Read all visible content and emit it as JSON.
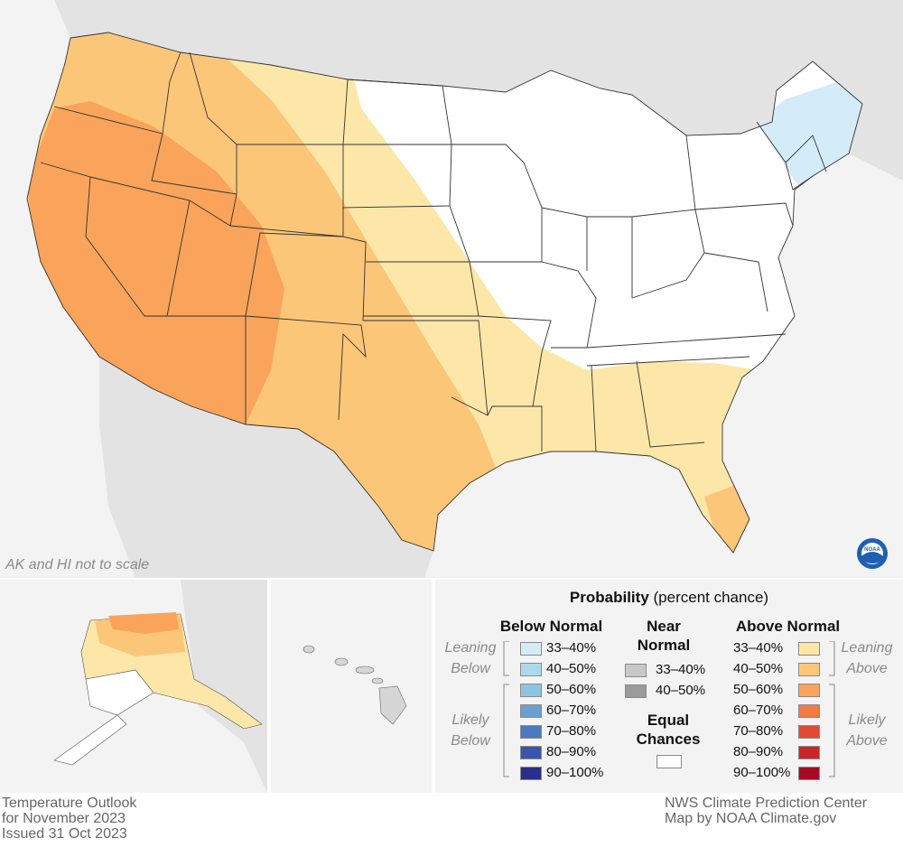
{
  "map": {
    "note": "AK and HI not to scale",
    "logo": "NOAA",
    "colors": {
      "land_bg": "#e8e8e8",
      "water_bg": "#f3f3f3",
      "ec": "#ffffff",
      "above_33_40": "#fde7a8",
      "above_40_50": "#fcc679",
      "above_50_60": "#f9a45a",
      "below_33_40": "#d3ecf7",
      "state_lines": "#333333"
    }
  },
  "legend": {
    "title_bold": "Probability",
    "title_rest": " (percent chance)",
    "below_header": "Below Normal",
    "near_header": "Near Normal",
    "above_header": "Above Normal",
    "leaning": "Leaning",
    "below_word": "Below",
    "likely": "Likely",
    "above_word": "Above",
    "equal_chances": "Equal Chances",
    "below_bins": [
      {
        "label": "33–40%",
        "color": "#d3ecf7"
      },
      {
        "label": "40–50%",
        "color": "#aed9ec"
      },
      {
        "label": "50–60%",
        "color": "#8cc4e2"
      },
      {
        "label": "60–70%",
        "color": "#6a9fd0"
      },
      {
        "label": "70–80%",
        "color": "#4d79c0"
      },
      {
        "label": "80–90%",
        "color": "#3a55ab"
      },
      {
        "label": "90–100%",
        "color": "#2a2e8a"
      }
    ],
    "near_bins": [
      {
        "label": "33–40%",
        "color": "#c8c8c8"
      },
      {
        "label": "40–50%",
        "color": "#9b9b9b"
      }
    ],
    "above_bins": [
      {
        "label": "33–40%",
        "color": "#fde7a8"
      },
      {
        "label": "40–50%",
        "color": "#fcc679"
      },
      {
        "label": "50–60%",
        "color": "#f9a45a"
      },
      {
        "label": "60–70%",
        "color": "#f27a46"
      },
      {
        "label": "70–80%",
        "color": "#e24b33"
      },
      {
        "label": "80–90%",
        "color": "#cc2529"
      },
      {
        "label": "90–100%",
        "color": "#a60a23"
      }
    ]
  },
  "footer": {
    "left_line1": "Temperature Outlook",
    "left_line2": "for November 2023",
    "left_line3": "Issued 31 Oct 2023",
    "right_line1": "NWS Climate Prediction Center",
    "right_line2": "Map by NOAA Climate.gov"
  }
}
